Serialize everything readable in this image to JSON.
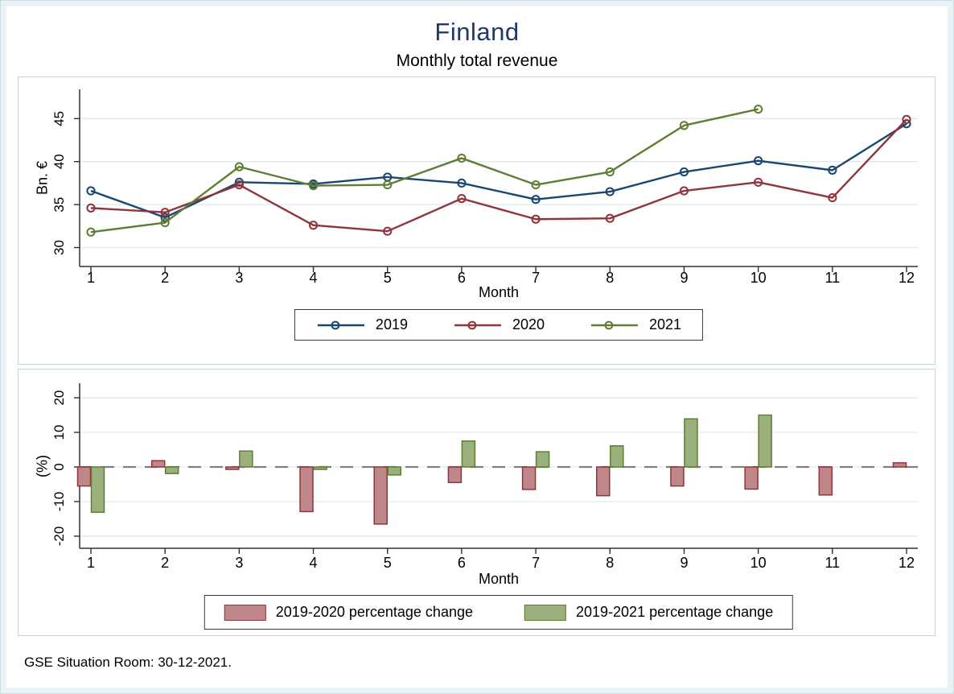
{
  "page": {
    "title": "Finland",
    "subtitle": "Monthly total revenue",
    "footer": "GSE Situation Room: 30-12-2021."
  },
  "colors": {
    "title": "#1e3a68",
    "frame": "#e9f2f4",
    "panel_border": "#c6d4da",
    "gridline": "#dfeaee",
    "axis": "#303030",
    "zero_dash": "#7f7f7f",
    "navy": "#1a476f",
    "maroon": "#90353b",
    "olive": "#5f7d33",
    "maroon_fill": "#c0878b",
    "olive_fill": "#9bb17d"
  },
  "chart_data": [
    {
      "type": "line",
      "title": "Monthly total revenue",
      "xlabel": "Month",
      "ylabel": "Bn. €",
      "x": [
        1,
        2,
        3,
        4,
        5,
        6,
        7,
        8,
        9,
        10,
        11,
        12
      ],
      "yticks": [
        30,
        35,
        40,
        45
      ],
      "ylim": [
        27.8,
        48.4
      ],
      "grid": true,
      "legend_position": "bottom-boxed",
      "series": [
        {
          "name": "2019",
          "color": "#1a476f",
          "values": [
            36.6,
            33.5,
            37.6,
            37.4,
            38.2,
            37.5,
            35.6,
            36.5,
            38.8,
            40.1,
            39.0,
            44.4
          ]
        },
        {
          "name": "2020",
          "color": "#90353b",
          "values": [
            34.6,
            34.1,
            37.3,
            32.6,
            31.9,
            35.7,
            33.3,
            33.4,
            36.6,
            37.6,
            35.8,
            44.9
          ]
        },
        {
          "name": "2021",
          "color": "#5f7d33",
          "values": [
            31.8,
            32.9,
            39.4,
            37.2,
            37.3,
            40.4,
            37.3,
            38.8,
            44.2,
            46.1,
            null,
            null
          ]
        }
      ]
    },
    {
      "type": "bar",
      "title": "",
      "xlabel": "Month",
      "ylabel": "(%)",
      "x": [
        1,
        2,
        3,
        4,
        5,
        6,
        7,
        8,
        9,
        10,
        11,
        12
      ],
      "yticks": [
        -20,
        -10,
        0,
        10,
        20
      ],
      "ylim": [
        -23.5,
        24.2
      ],
      "grid": true,
      "zero_line_dashed": true,
      "legend_position": "bottom-boxed",
      "series": [
        {
          "name": "2019-2020 percentage change",
          "fill": "#c0878b",
          "border": "#90353b",
          "values": [
            -5.5,
            1.8,
            -0.7,
            -12.9,
            -16.5,
            -4.5,
            -6.5,
            -8.3,
            -5.5,
            -6.4,
            -8.1,
            1.2
          ]
        },
        {
          "name": "2019-2021 percentage change",
          "fill": "#9bb17d",
          "border": "#5f7d33",
          "values": [
            -13.1,
            -1.9,
            4.6,
            -0.7,
            -2.3,
            7.5,
            4.4,
            6.1,
            13.9,
            15.0,
            null,
            null
          ]
        }
      ]
    }
  ]
}
